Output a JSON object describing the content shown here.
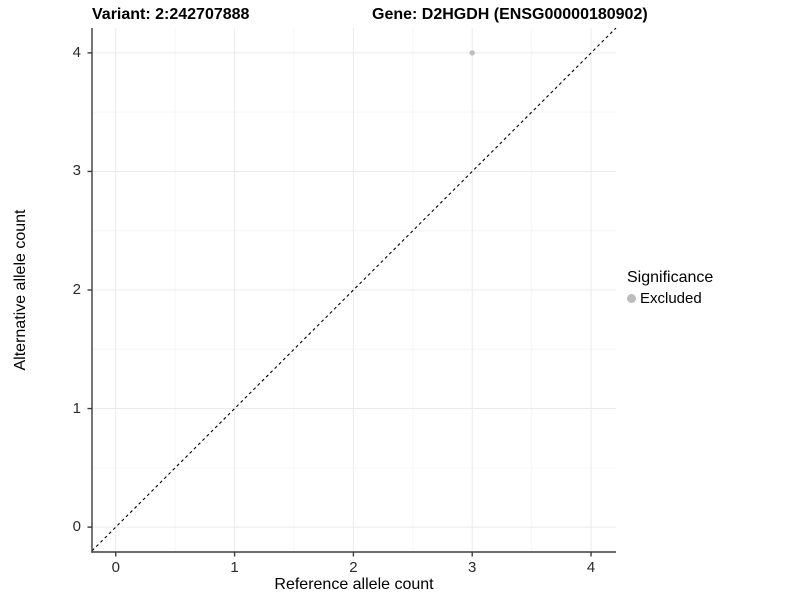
{
  "chart_data": {
    "type": "scatter",
    "title_left": "Variant: 2:242707888",
    "title_right": "Gene: D2HGDH (ENSG00000180902)",
    "xlabel": "Reference allele count",
    "ylabel": "Alternative allele count",
    "xlim": [
      -0.2,
      4.21
    ],
    "ylim": [
      -0.21,
      4.21
    ],
    "xticks": [
      0,
      1,
      2,
      3,
      4
    ],
    "yticks": [
      0,
      1,
      2,
      3,
      4
    ],
    "minor_ticks": [
      0.5,
      1.5,
      2.5,
      3.5
    ],
    "grid": true,
    "points": [
      {
        "x": 3,
        "y": 4,
        "significance": "Excluded"
      }
    ],
    "identity_line": {
      "equation": "y = x",
      "style": "dashed"
    },
    "legend": {
      "title": "Significance",
      "position": "right",
      "items": [
        {
          "label": "Excluded",
          "color": "#bdbdbd"
        }
      ]
    },
    "colors": {
      "background": "#ffffff",
      "grid_major": "#ebebeb",
      "grid_minor": "#f6f6f6",
      "axis": "#3c3c3c",
      "point": "#bdbdbd",
      "dashed_line": "#000000"
    }
  }
}
